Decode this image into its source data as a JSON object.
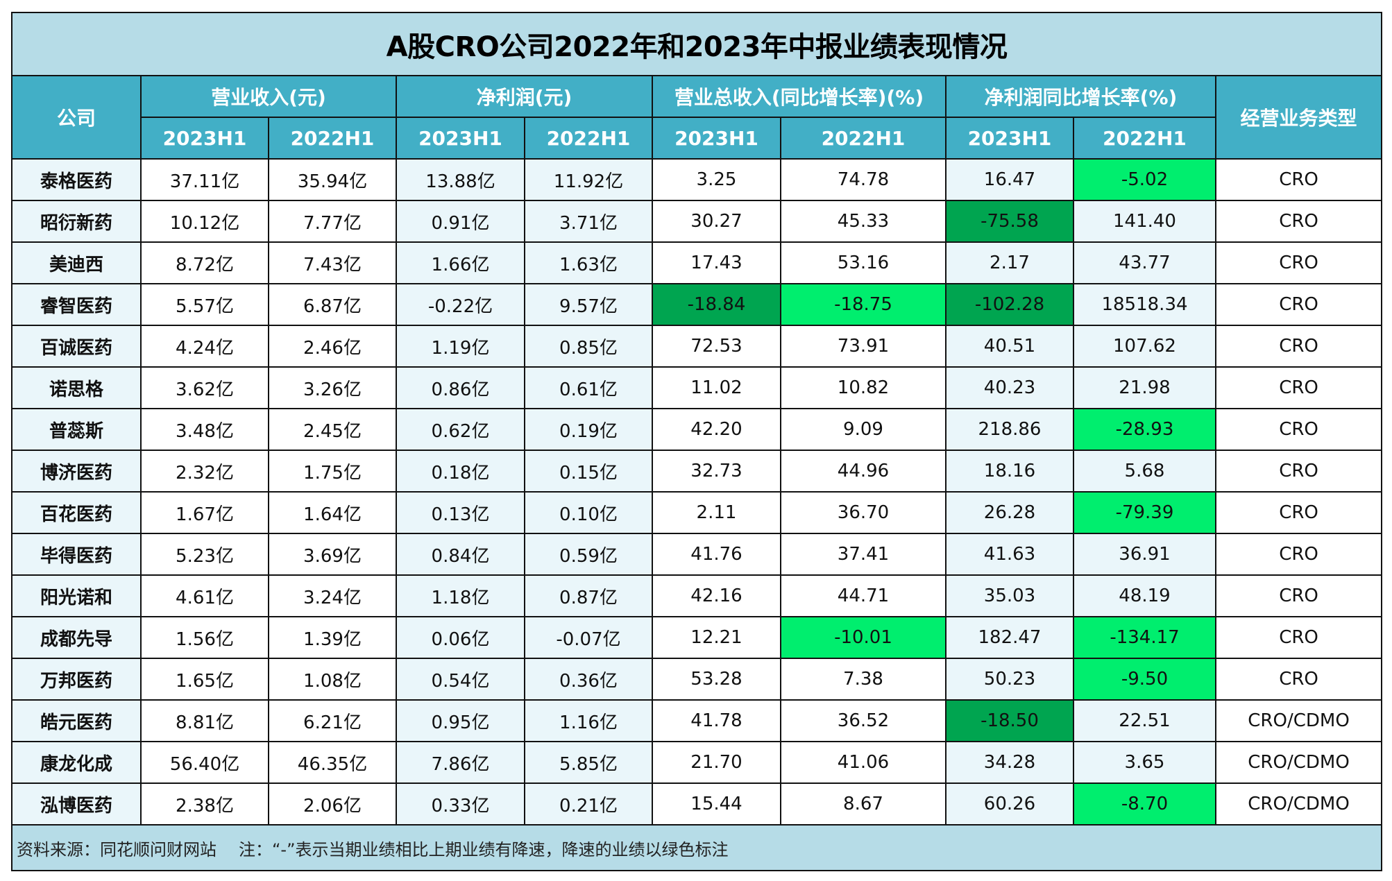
{
  "title": "A股CRO公司2022年和2023年中报业绩表现情况",
  "header": {
    "company": "公司",
    "groups": [
      {
        "label": "营业收入(元)",
        "sub": [
          "2023H1",
          "2022H1"
        ]
      },
      {
        "label": "净利润(元)",
        "sub": [
          "2023H1",
          "2022H1"
        ]
      },
      {
        "label": "营业总收入(同比增长率)(%)",
        "sub": [
          "2023H1",
          "2022H1"
        ]
      },
      {
        "label": "净利润同比增长率(%)",
        "sub": [
          "2023H1",
          "2022H1"
        ]
      }
    ],
    "business_type": "经营业务类型"
  },
  "colors": {
    "title_bg": "#b6dce7",
    "header_bg": "#42afc6",
    "light_cell_bg": "#eaf6fa",
    "decline_dark_green": "#00a550",
    "decline_bright_green": "#00ee6e"
  },
  "rows": [
    {
      "company": "泰格医药",
      "rev_2023": "37.11亿",
      "rev_2022": "35.94亿",
      "np_2023": "13.88亿",
      "np_2022": "11.92亿",
      "rev_g_2023": "3.25",
      "rev_g_2022": "74.78",
      "np_g_2023": "16.47",
      "np_g_2022": "-5.02",
      "type": "CRO"
    },
    {
      "company": "昭衍新药",
      "rev_2023": "10.12亿",
      "rev_2022": "7.77亿",
      "np_2023": "0.91亿",
      "np_2022": "3.71亿",
      "rev_g_2023": "30.27",
      "rev_g_2022": "45.33",
      "np_g_2023": "-75.58",
      "np_g_2022": "141.40",
      "type": "CRO"
    },
    {
      "company": "美迪西",
      "rev_2023": "8.72亿",
      "rev_2022": "7.43亿",
      "np_2023": "1.66亿",
      "np_2022": "1.63亿",
      "rev_g_2023": "17.43",
      "rev_g_2022": "53.16",
      "np_g_2023": "2.17",
      "np_g_2022": "43.77",
      "type": "CRO"
    },
    {
      "company": "睿智医药",
      "rev_2023": "5.57亿",
      "rev_2022": "6.87亿",
      "np_2023": "-0.22亿",
      "np_2022": "9.57亿",
      "rev_g_2023": "-18.84",
      "rev_g_2022": "-18.75",
      "np_g_2023": "-102.28",
      "np_g_2022": "18518.34",
      "type": "CRO"
    },
    {
      "company": "百诚医药",
      "rev_2023": "4.24亿",
      "rev_2022": "2.46亿",
      "np_2023": "1.19亿",
      "np_2022": "0.85亿",
      "rev_g_2023": "72.53",
      "rev_g_2022": "73.91",
      "np_g_2023": "40.51",
      "np_g_2022": "107.62",
      "type": "CRO"
    },
    {
      "company": "诺思格",
      "rev_2023": "3.62亿",
      "rev_2022": "3.26亿",
      "np_2023": "0.86亿",
      "np_2022": "0.61亿",
      "rev_g_2023": "11.02",
      "rev_g_2022": "10.82",
      "np_g_2023": "40.23",
      "np_g_2022": "21.98",
      "type": "CRO"
    },
    {
      "company": "普蕊斯",
      "rev_2023": "3.48亿",
      "rev_2022": "2.45亿",
      "np_2023": "0.62亿",
      "np_2022": "0.19亿",
      "rev_g_2023": "42.20",
      "rev_g_2022": "9.09",
      "np_g_2023": "218.86",
      "np_g_2022": "-28.93",
      "type": "CRO"
    },
    {
      "company": "博济医药",
      "rev_2023": "2.32亿",
      "rev_2022": "1.75亿",
      "np_2023": "0.18亿",
      "np_2022": "0.15亿",
      "rev_g_2023": "32.73",
      "rev_g_2022": "44.96",
      "np_g_2023": "18.16",
      "np_g_2022": "5.68",
      "type": "CRO"
    },
    {
      "company": "百花医药",
      "rev_2023": "1.67亿",
      "rev_2022": "1.64亿",
      "np_2023": "0.13亿",
      "np_2022": "0.10亿",
      "rev_g_2023": "2.11",
      "rev_g_2022": "36.70",
      "np_g_2023": "26.28",
      "np_g_2022": "-79.39",
      "type": "CRO"
    },
    {
      "company": "毕得医药",
      "rev_2023": "5.23亿",
      "rev_2022": "3.69亿",
      "np_2023": "0.84亿",
      "np_2022": "0.59亿",
      "rev_g_2023": "41.76",
      "rev_g_2022": "37.41",
      "np_g_2023": "41.63",
      "np_g_2022": "36.91",
      "type": "CRO"
    },
    {
      "company": "阳光诺和",
      "rev_2023": "4.61亿",
      "rev_2022": "3.24亿",
      "np_2023": "1.18亿",
      "np_2022": "0.87亿",
      "rev_g_2023": "42.16",
      "rev_g_2022": "44.71",
      "np_g_2023": "35.03",
      "np_g_2022": "48.19",
      "type": "CRO"
    },
    {
      "company": "成都先导",
      "rev_2023": "1.56亿",
      "rev_2022": "1.39亿",
      "np_2023": "0.06亿",
      "np_2022": "-0.07亿",
      "rev_g_2023": "12.21",
      "rev_g_2022": "-10.01",
      "np_g_2023": "182.47",
      "np_g_2022": "-134.17",
      "type": "CRO"
    },
    {
      "company": "万邦医药",
      "rev_2023": "1.65亿",
      "rev_2022": "1.08亿",
      "np_2023": "0.54亿",
      "np_2022": "0.36亿",
      "rev_g_2023": "53.28",
      "rev_g_2022": "7.38",
      "np_g_2023": "50.23",
      "np_g_2022": "-9.50",
      "type": "CRO"
    },
    {
      "company": "皓元医药",
      "rev_2023": "8.81亿",
      "rev_2022": "6.21亿",
      "np_2023": "0.95亿",
      "np_2022": "1.16亿",
      "rev_g_2023": "41.78",
      "rev_g_2022": "36.52",
      "np_g_2023": "-18.50",
      "np_g_2022": "22.51",
      "type": "CRO/CDMO"
    },
    {
      "company": "康龙化成",
      "rev_2023": "56.40亿",
      "rev_2022": "46.35亿",
      "np_2023": "7.86亿",
      "np_2022": "5.85亿",
      "rev_g_2023": "21.70",
      "rev_g_2022": "41.06",
      "np_g_2023": "34.28",
      "np_g_2022": "3.65",
      "type": "CRO/CDMO"
    },
    {
      "company": "泓博医药",
      "rev_2023": "2.38亿",
      "rev_2022": "2.06亿",
      "np_2023": "0.33亿",
      "np_2022": "0.21亿",
      "rev_g_2023": "15.44",
      "rev_g_2022": "8.67",
      "np_g_2023": "60.26",
      "np_g_2022": "-8.70",
      "type": "CRO/CDMO"
    }
  ],
  "footer": {
    "source": "资料来源：同花顺问财网站",
    "note": "注：“-”表示当期业绩相比上期业绩有降速，降速的业绩以绿色标注"
  }
}
